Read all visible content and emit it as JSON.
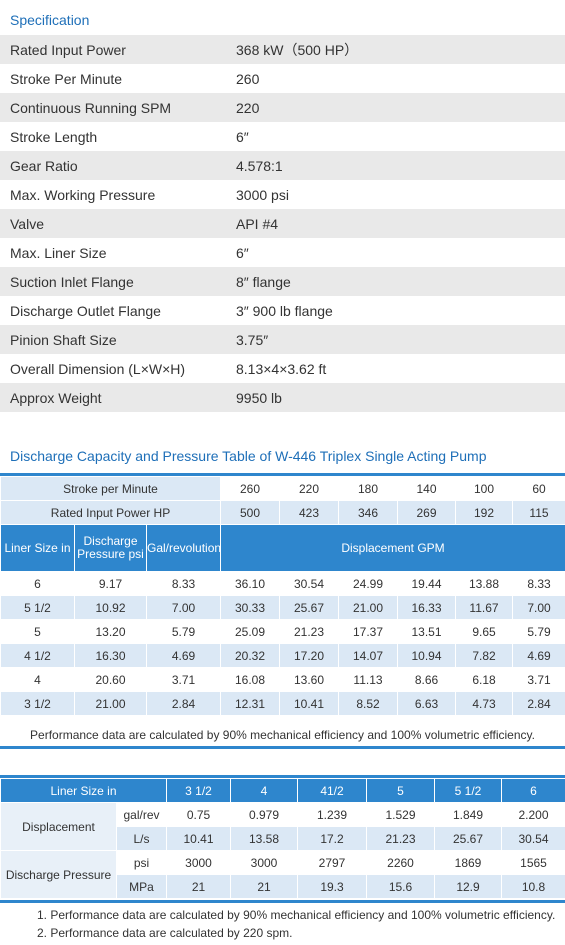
{
  "spec": {
    "title": "Specification",
    "rows": [
      {
        "label": "Rated Input Power",
        "value": "368 kW（500 HP）"
      },
      {
        "label": "Stroke Per Minute",
        "value": "260"
      },
      {
        "label": "Continuous Running SPM",
        "value": "220"
      },
      {
        "label": "Stroke Length",
        "value": "6″"
      },
      {
        "label": "Gear Ratio",
        "value": "4.578:1"
      },
      {
        "label": "Max. Working Pressure",
        "value": "3000 psi"
      },
      {
        "label": "Valve",
        "value": "API #4"
      },
      {
        "label": "Max. Liner Size",
        "value": "6″"
      },
      {
        "label": "Suction Inlet Flange",
        "value": "8″   flange"
      },
      {
        "label": "Discharge Outlet Flange",
        "value": "3″ 900 lb flange"
      },
      {
        "label": "Pinion Shaft Size",
        "value": "3.75″"
      },
      {
        "label": "Overall Dimension (L×W×H)",
        "value": "8.13×4×3.62 ft"
      },
      {
        "label": "Approx Weight",
        "value": "9950 lb"
      }
    ]
  },
  "capacity": {
    "title": "Discharge Capacity and Pressure Table of W-446 Triplex Single Acting Pump",
    "spm_label": "Stroke per Minute",
    "spm_values": [
      "260",
      "220",
      "180",
      "140",
      "100",
      "60"
    ],
    "power_label": "Rated Input Power HP",
    "power_values": [
      "500",
      "423",
      "346",
      "269",
      "192",
      "115"
    ],
    "col_liner": "Liner Size in",
    "col_pressure": "Discharge Pressure psi",
    "col_gal": "Gal/revolution",
    "col_displacement": "Displacement  GPM",
    "rows": [
      {
        "liner": "6",
        "pressure": "9.17",
        "gal": "8.33",
        "gpm": [
          "36.10",
          "30.54",
          "24.99",
          "19.44",
          "13.88",
          "8.33"
        ]
      },
      {
        "liner": "5 1/2",
        "pressure": "10.92",
        "gal": "7.00",
        "gpm": [
          "30.33",
          "25.67",
          "21.00",
          "16.33",
          "11.67",
          "7.00"
        ]
      },
      {
        "liner": "5",
        "pressure": "13.20",
        "gal": "5.79",
        "gpm": [
          "25.09",
          "21.23",
          "17.37",
          "13.51",
          "9.65",
          "5.79"
        ]
      },
      {
        "liner": "4 1/2",
        "pressure": "16.30",
        "gal": "4.69",
        "gpm": [
          "20.32",
          "17.20",
          "14.07",
          "10.94",
          "7.82",
          "4.69"
        ]
      },
      {
        "liner": "4",
        "pressure": "20.60",
        "gal": "3.71",
        "gpm": [
          "16.08",
          "13.60",
          "11.13",
          "8.66",
          "6.18",
          "3.71"
        ]
      },
      {
        "liner": "3 1/2",
        "pressure": "21.00",
        "gal": "2.84",
        "gpm": [
          "12.31",
          "10.41",
          "8.52",
          "6.63",
          "4.73",
          "2.84"
        ]
      }
    ],
    "note": "Performance data are calculated by 90% mechanical efficiency and 100% volumetric efficiency."
  },
  "liner": {
    "header_label": "Liner Size  in",
    "sizes": [
      "3 1/2",
      "4",
      "41/2",
      "5",
      "5 1/2",
      "6"
    ],
    "displacement_label": "Displacement",
    "discharge_label": "Discharge Pressure",
    "rows": [
      {
        "unit": "gal/rev",
        "values": [
          "0.75",
          "0.979",
          "1.239",
          "1.529",
          "1.849",
          "2.200"
        ]
      },
      {
        "unit": "L/s",
        "values": [
          "10.41",
          "13.58",
          "17.2",
          "21.23",
          "25.67",
          "30.54"
        ]
      },
      {
        "unit": "psi",
        "values": [
          "3000",
          "3000",
          "2797",
          "2260",
          "1869",
          "1565"
        ]
      },
      {
        "unit": "MPa",
        "values": [
          "21",
          "21",
          "19.3",
          "15.6",
          "12.9",
          "10.8"
        ]
      }
    ],
    "notes": [
      "1. Performance data are calculated by 90% mechanical efficiency and 100% volumetric efficiency.",
      "2. Performance data are calculated by 220 spm."
    ]
  },
  "colors": {
    "accent": "#2e86cd",
    "title": "#1e6fb8",
    "light": "#dbe8f5",
    "stripe": "#e9e9e9"
  }
}
